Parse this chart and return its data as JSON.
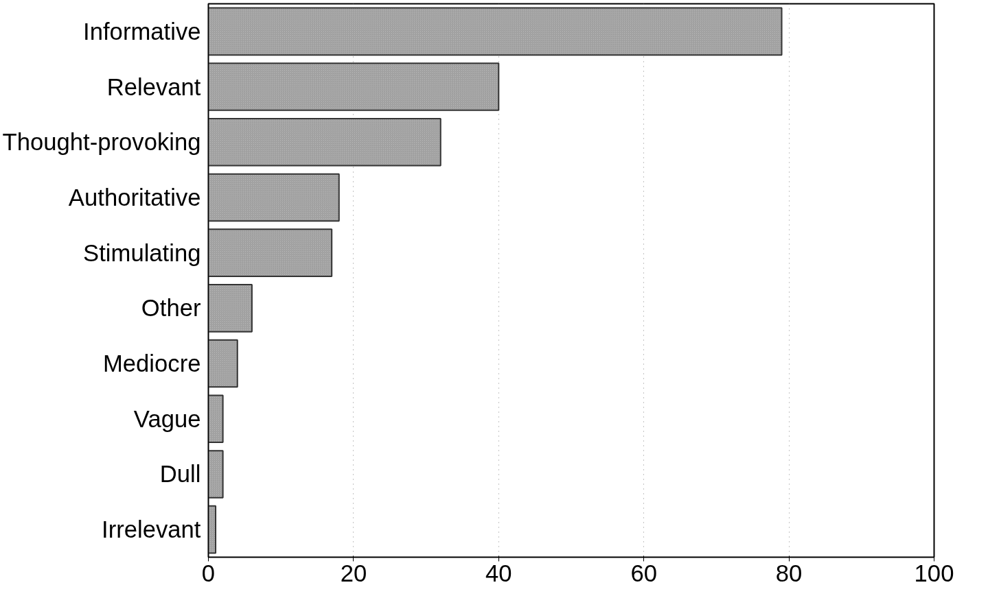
{
  "chart_data": {
    "type": "bar",
    "orientation": "horizontal",
    "categories": [
      "Informative",
      "Relevant",
      "Thought-provoking",
      "Authoritative",
      "Stimulating",
      "Other",
      "Mediocre",
      "Vague",
      "Dull",
      "Irrelevant"
    ],
    "values": [
      79,
      40,
      32,
      18,
      17,
      6,
      4,
      2,
      2,
      1
    ],
    "color": "#b4b4b4",
    "xlim": [
      0,
      100
    ],
    "xticks": [
      0,
      20,
      40,
      60,
      80,
      100
    ],
    "grid": "x"
  }
}
